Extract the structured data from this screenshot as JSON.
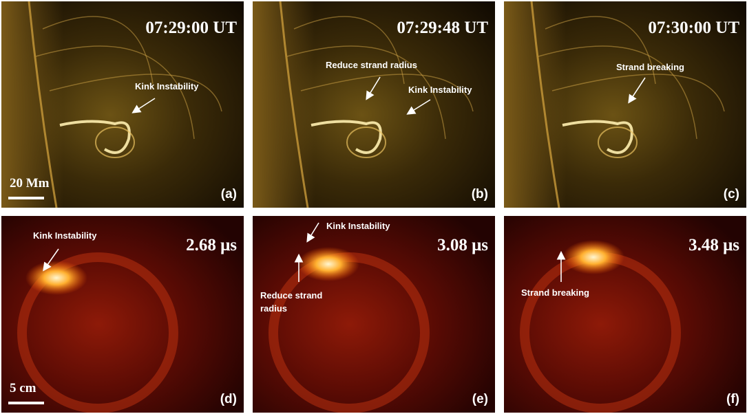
{
  "panels": [
    {
      "time": "07:29:00 UT",
      "label": "(a)",
      "scale_bar": "20 Mm",
      "annotations": [
        {
          "lines": [
            "Kink Instability"
          ]
        }
      ]
    },
    {
      "time": "07:29:48 UT",
      "label": "(b)",
      "annotations": [
        {
          "lines": [
            "Reduce strand radius"
          ]
        },
        {
          "lines": [
            "Kink Instability"
          ]
        }
      ]
    },
    {
      "time": "07:30:00 UT",
      "label": "(c)",
      "annotations": [
        {
          "lines": [
            "Strand breaking"
          ]
        }
      ]
    },
    {
      "time": "2.68 μs",
      "label": "(d)",
      "scale_bar": "5 cm",
      "annotations": [
        {
          "lines": [
            "Kink Instability"
          ]
        }
      ]
    },
    {
      "time": "3.08 μs",
      "label": "(e)",
      "annotations": [
        {
          "lines": [
            "Kink Instability"
          ]
        },
        {
          "lines": [
            "Reduce strand",
            "radius"
          ]
        }
      ]
    },
    {
      "time": "3.48 μs",
      "label": "(f)",
      "annotations": [
        {
          "lines": [
            "Strand breaking"
          ]
        }
      ]
    }
  ]
}
